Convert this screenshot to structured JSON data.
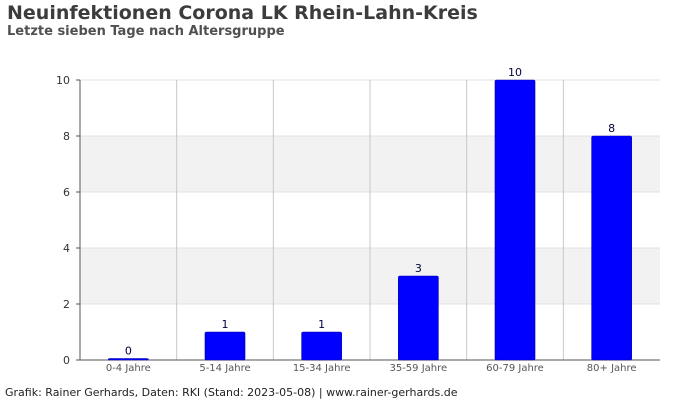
{
  "title": "Neuinfektionen Corona LK Rhein-Lahn-Kreis",
  "subtitle": "Letzte sieben Tage nach Altersgruppe",
  "footer": "Grafik: Rainer Gerhards, Daten: RKI (Stand: 2023-05-08) | www.rainer-gerhards.de",
  "colors": {
    "bar": "#0000ff",
    "band": "#f2f2f2",
    "grid": "#c8c8c8",
    "axis": "#555555",
    "label": "#00003c"
  },
  "chart_data": {
    "type": "bar",
    "categories": [
      "0-4 Jahre",
      "5-14 Jahre",
      "15-34 Jahre",
      "35-59 Jahre",
      "60-79 Jahre",
      "80+ Jahre"
    ],
    "values": [
      0,
      1,
      1,
      3,
      10,
      8
    ],
    "yticks": [
      0,
      2,
      4,
      6,
      8,
      10
    ],
    "ylim": [
      0,
      10
    ],
    "title": "Neuinfektionen Corona LK Rhein-Lahn-Kreis",
    "subtitle": "Letzte sieben Tage nach Altersgruppe",
    "data_labels": true,
    "grid": true
  }
}
